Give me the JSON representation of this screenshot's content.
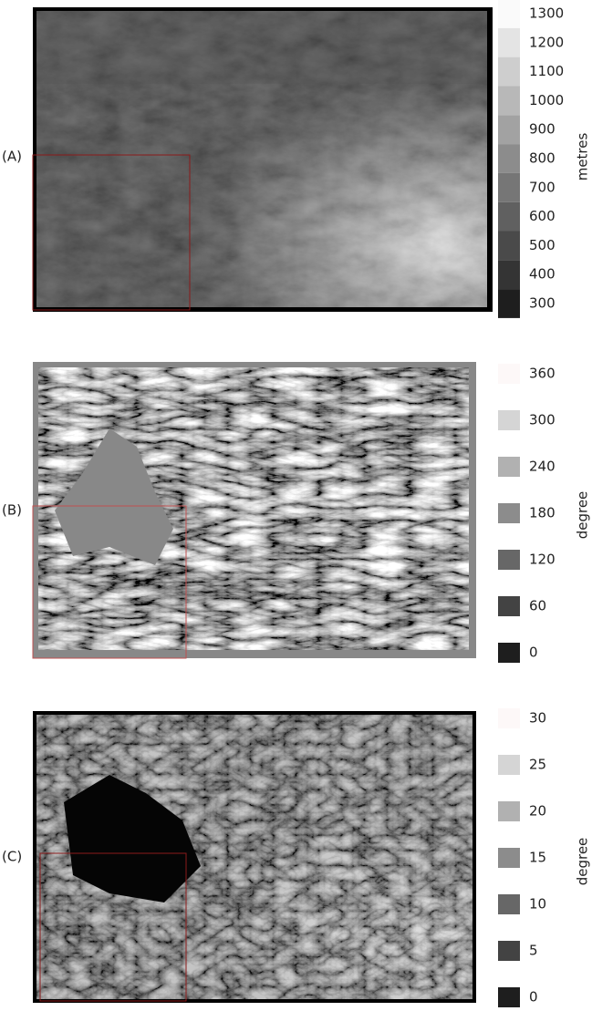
{
  "panels": [
    {
      "label": "(A)",
      "legend": {
        "title": "metres",
        "items": [
          "1300",
          "1200",
          "1100",
          "1000",
          "900",
          "800",
          "700",
          "600",
          "500",
          "400",
          "300"
        ]
      }
    },
    {
      "label": "(B)",
      "legend": {
        "title": "degree",
        "items": [
          "360",
          "300",
          "240",
          "180",
          "120",
          "60",
          "0"
        ]
      }
    },
    {
      "label": "(C)",
      "legend": {
        "title": "degree",
        "items": [
          "30",
          "25",
          "20",
          "15",
          "10",
          "5",
          "0"
        ]
      }
    }
  ]
}
